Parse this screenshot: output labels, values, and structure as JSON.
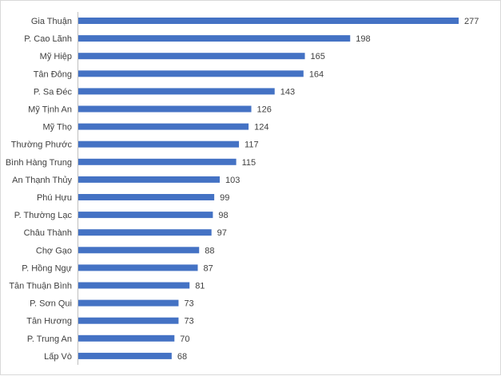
{
  "chart_data": {
    "type": "bar",
    "orientation": "horizontal",
    "categories": [
      "Gia Thuận",
      "P. Cao Lãnh",
      "Mỹ Hiệp",
      "Tân Đông",
      "P. Sa Đéc",
      "Mỹ Tịnh An",
      "Mỹ Thọ",
      "Thường Phước",
      "Bình Hàng Trung",
      "An Thạnh Thủy",
      "Phú Hựu",
      "P. Thường Lạc",
      "Châu Thành",
      "Chợ Gạo",
      "P. Hồng Ngự",
      "Tân Thuận Bình",
      "P. Sơn Qui",
      "Tân Hương",
      "P. Trung An",
      "Lấp Vò"
    ],
    "values": [
      277,
      198,
      165,
      164,
      143,
      126,
      124,
      117,
      115,
      103,
      99,
      98,
      97,
      88,
      87,
      81,
      73,
      73,
      70,
      68
    ],
    "title": "",
    "xlabel": "",
    "ylabel": "",
    "xlim": [
      0,
      300
    ],
    "grid": false,
    "data_labels": true,
    "legend": "none",
    "bar_color": "#4472c4"
  }
}
